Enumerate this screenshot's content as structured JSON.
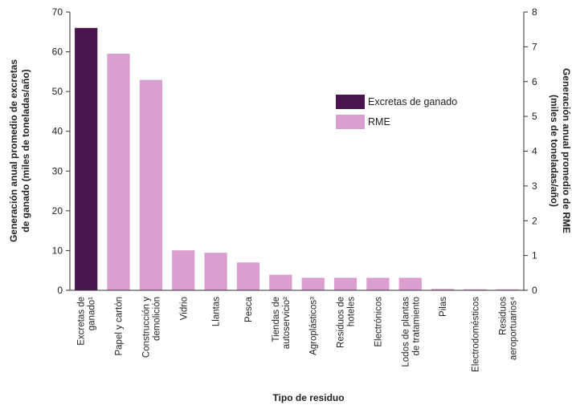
{
  "chart_data": {
    "type": "bar",
    "xlabel": "Tipo de residuo",
    "ylabel_left": "Generación anual promedio de excretas de ganado (miles de toneladas/año)",
    "ylabel_right": "Generación anual promedio de RME (miles de toneladas/año)",
    "ylim_left": [
      0,
      70
    ],
    "ylim_right": [
      0,
      8
    ],
    "yticks_left": [
      "0",
      "10",
      "20",
      "30",
      "40",
      "50",
      "60",
      "70"
    ],
    "yticks_right": [
      "0",
      "1",
      "2",
      "3",
      "4",
      "5",
      "6",
      "7",
      "8"
    ],
    "grid": false,
    "legend_position": "center-right",
    "colors": {
      "excretas": "#4b1650",
      "rme": "#d9a0cf"
    },
    "categories": [
      "Excretas de ganado¹",
      "Papel y cartón",
      "Construcción y demolición",
      "Vidrio",
      "Llantas",
      "Pesca",
      "Tiendas de autoservicio²",
      "Agroplásticos³",
      "Residuos de hoteles",
      "Electrónicos",
      "Lodos de plantas de tratamiento",
      "Pilas",
      "Electrodomésticos",
      "Residuos aeroportuarios⁴"
    ],
    "category_lines": [
      [
        "Excretas de",
        "ganado¹"
      ],
      [
        "Papel y cartón"
      ],
      [
        "Construcción y",
        "demolición"
      ],
      [
        "Vidrio"
      ],
      [
        "Llantas"
      ],
      [
        "Pesca"
      ],
      [
        "Tiendas de",
        "autoservicio²"
      ],
      [
        "Agroplásticos³"
      ],
      [
        "Residuos de",
        "hoteles"
      ],
      [
        "Electrónicos"
      ],
      [
        "Lodos de plantas",
        "de tratamiento"
      ],
      [
        "Pilas"
      ],
      [
        "Electrodomésticos"
      ],
      [
        "Residuos",
        "aeroportuarios⁴"
      ]
    ],
    "series": [
      {
        "name": "Excretas de ganado",
        "axis": "left",
        "values": [
          66,
          null,
          null,
          null,
          null,
          null,
          null,
          null,
          null,
          null,
          null,
          null,
          null,
          null
        ]
      },
      {
        "name": "RME",
        "axis": "right",
        "values": [
          null,
          6.8,
          6.05,
          1.15,
          1.08,
          0.8,
          0.45,
          0.36,
          0.36,
          0.36,
          0.36,
          0.04,
          0.03,
          0.03
        ]
      }
    ]
  }
}
